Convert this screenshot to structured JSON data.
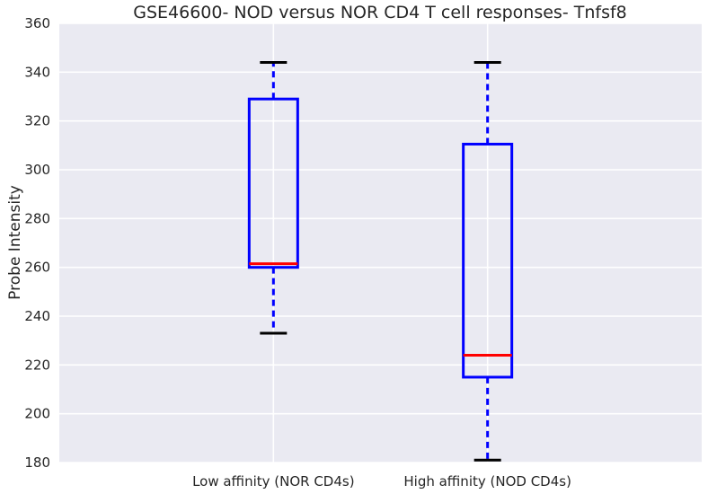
{
  "chart_data": {
    "type": "box",
    "title": "GSE46600- NOD versus NOR CD4 T cell responses- Tnfsf8",
    "xlabel": "",
    "ylabel": "Probe Intensity",
    "ylim": [
      180,
      360
    ],
    "yticks": [
      180,
      200,
      220,
      240,
      260,
      280,
      300,
      320,
      340,
      360
    ],
    "grid": true,
    "colors": {
      "background": "#eaeaf2",
      "grid": "#ffffff",
      "box": "#0000ff",
      "median": "#ff0000",
      "cap": "#000000"
    },
    "categories": [
      "Low affinity (NOR CD4s)",
      "High affinity (NOD CD4s)"
    ],
    "boxes": [
      {
        "category": "Low affinity (NOR CD4s)",
        "whisker_low": 233,
        "q1": 260,
        "median": 261.5,
        "q3": 329,
        "whisker_high": 344
      },
      {
        "category": "High affinity (NOD CD4s)",
        "whisker_low": 181,
        "q1": 215,
        "median": 224,
        "q3": 310.5,
        "whisker_high": 344
      }
    ]
  }
}
